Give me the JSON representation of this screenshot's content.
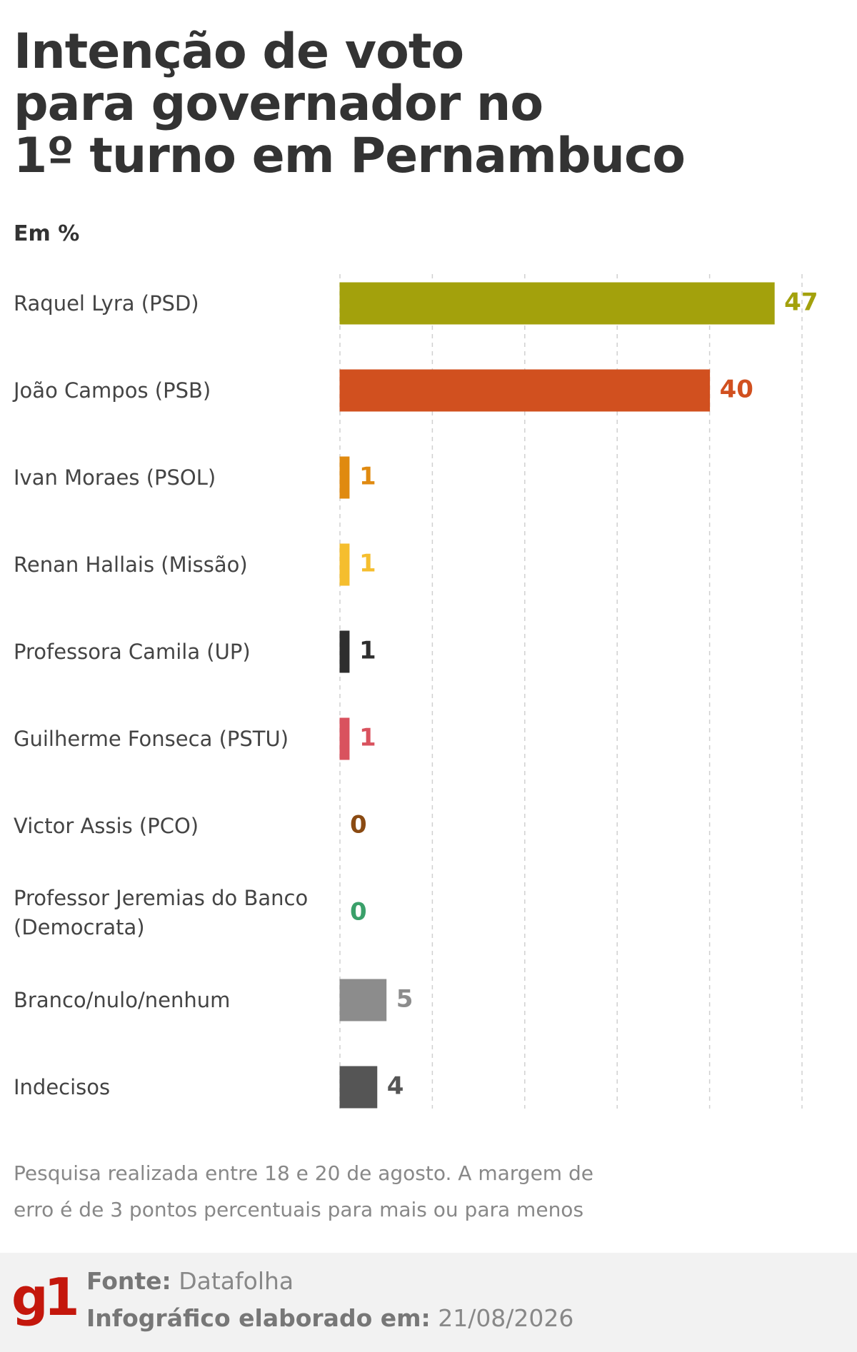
{
  "chart_data": {
    "type": "hbar",
    "title": [
      "Intenção de voto",
      "para governador no",
      "1º turno em Pernambuco"
    ],
    "subtitle": "Em %",
    "categories": [
      "Raquel Lyra (PSD)",
      "João Campos (PSB)",
      "Ivan Moraes (PSOL)",
      "Renan Hallais (Missão)",
      "Professora Camila (UP)",
      "Guilherme Fonseca (PSTU)",
      "Victor Assis (PCO)",
      "Professor Jeremias do Banco (Democrata)",
      "Branco/nulo/nenhum",
      "Indecisos"
    ],
    "values": [
      47,
      40,
      1,
      1,
      1,
      1,
      0,
      0,
      5,
      4
    ],
    "colors": [
      "#a3a10c",
      "#d1501f",
      "#e08a10",
      "#f5be2e",
      "#2e2e2e",
      "#d9525e",
      "#8a4a12",
      "#3aa06a",
      "#8c8c8c",
      "#555555"
    ],
    "xlim": [
      0,
      50
    ],
    "xticks": [
      0,
      10,
      20,
      30,
      40,
      50
    ],
    "grid": true,
    "note": "Pesquisa realizada entre 18 e 20 de agosto. A margem de erro é de 3 pontos percentuais para mais ou para menos",
    "logo": "g1",
    "source": {
      "label": "Fonte:",
      "value": "Datafolha"
    },
    "date": {
      "label": "Infográfico elaborado em:",
      "value": "21/08/2026"
    }
  }
}
